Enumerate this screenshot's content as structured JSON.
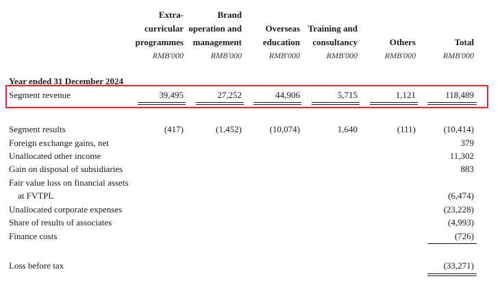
{
  "columns": [
    {
      "header_lines": [
        "Extra-",
        "curricular",
        "programmes"
      ],
      "unit": "RMB'000"
    },
    {
      "header_lines": [
        "Brand",
        "operation and",
        "management"
      ],
      "unit": "RMB'000"
    },
    {
      "header_lines": [
        "",
        "Overseas",
        "education"
      ],
      "unit": "RMB'000"
    },
    {
      "header_lines": [
        "",
        "Training and",
        "consultancy"
      ],
      "unit": "RMB'000"
    },
    {
      "header_lines": [
        "",
        "",
        "Others"
      ],
      "unit": "RMB'000"
    },
    {
      "header_lines": [
        "",
        "",
        "Total"
      ],
      "unit": "RMB'000"
    }
  ],
  "section_title": "Year ended 31 December 2024",
  "segment_revenue": {
    "label": "Segment revenue",
    "values": [
      "39,495",
      "27,252",
      "44,906",
      "5,715",
      "1,121",
      "118,489"
    ]
  },
  "rows": [
    {
      "label": "Segment results",
      "values": [
        "(417)",
        "(1,452)",
        "(10,074)",
        "1,640",
        "(111)",
        "(10,414)"
      ]
    },
    {
      "label": "Foreign exchange gains, net",
      "values": [
        "",
        "",
        "",
        "",
        "",
        "379"
      ]
    },
    {
      "label": "Unallocated other income",
      "values": [
        "",
        "",
        "",
        "",
        "",
        "11,302"
      ]
    },
    {
      "label": "Gain on disposal of subsidiaries",
      "values": [
        "",
        "",
        "",
        "",
        "",
        "883"
      ]
    },
    {
      "label": "Fair value loss on financial assets",
      "values": [
        "",
        "",
        "",
        "",
        "",
        ""
      ]
    },
    {
      "label": "at FVTPL",
      "values": [
        "",
        "",
        "",
        "",
        "",
        "(6,474)"
      ]
    },
    {
      "label": "Unallocated corporate expenses",
      "values": [
        "",
        "",
        "",
        "",
        "",
        "(23,228)"
      ]
    },
    {
      "label": "Share of results of associates",
      "values": [
        "",
        "",
        "",
        "",
        "",
        "(4,993)"
      ]
    },
    {
      "label": "Finance costs",
      "values": [
        "",
        "",
        "",
        "",
        "",
        "(726)"
      ]
    }
  ],
  "loss_before_tax": {
    "label": "Loss before tax",
    "value": "(33,271)"
  },
  "highlight_color": "#e8242a"
}
